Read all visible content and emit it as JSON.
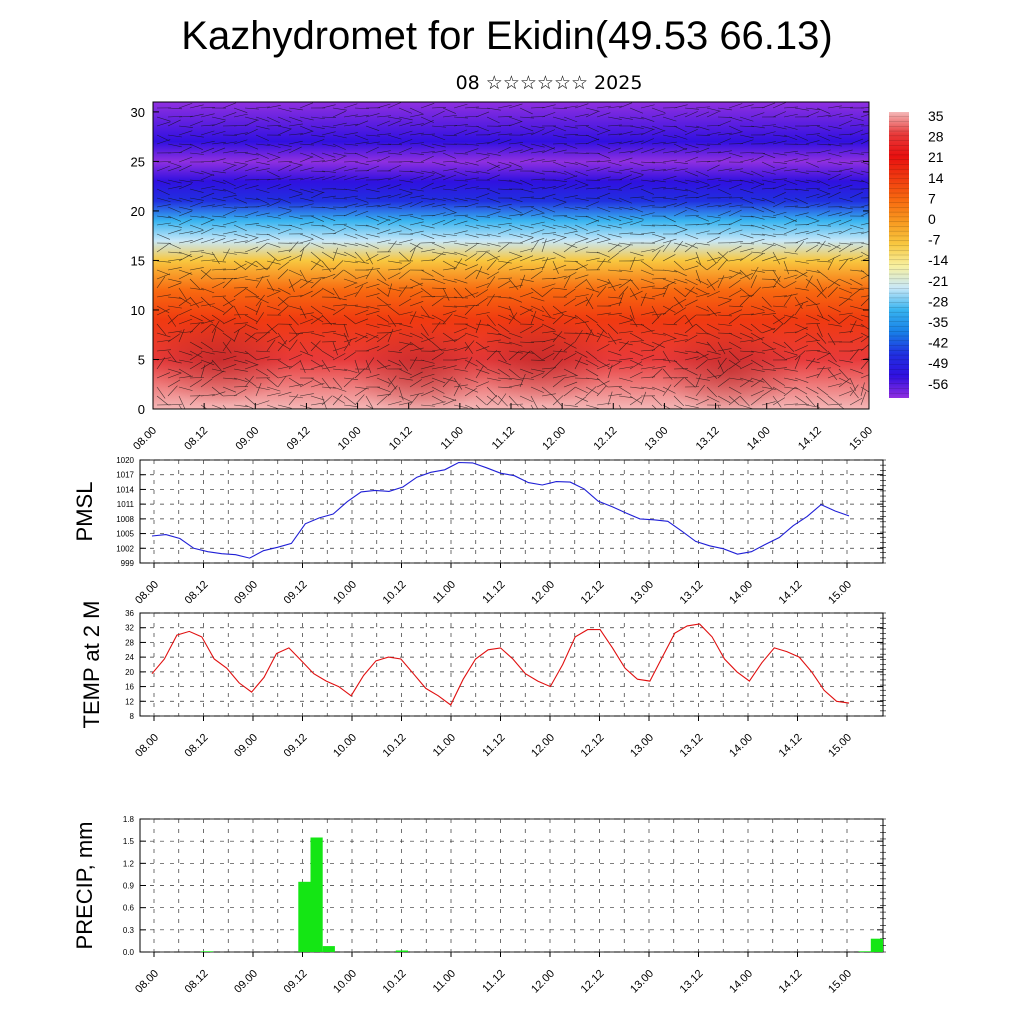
{
  "title": "Kazhydromet for Ekidin(49.53 66.13)",
  "subtitle": "08 ☆☆☆☆☆☆ 2025",
  "time_labels": [
    "08.00",
    "08.12",
    "09.00",
    "09.12",
    "10.00",
    "10.12",
    "11.00",
    "11.12",
    "12.00",
    "12.12",
    "13.00",
    "13.12",
    "14.00",
    "14.12",
    "15.00"
  ],
  "colors": {
    "pmsl": "#1f1fd6",
    "temp": "#e01010",
    "precip": "#14e614",
    "grid": "#555555"
  },
  "chart_data": [
    {
      "type": "heatmap",
      "title": "",
      "xlabel": "",
      "ylabel": "",
      "ylim": [
        0,
        31
      ],
      "yticks": [
        0,
        5,
        10,
        15,
        20,
        25,
        30
      ],
      "colorbar": {
        "labels": [
          "35",
          "28",
          "21",
          "14",
          "7",
          "0",
          "-7",
          "-14",
          "-21",
          "-28",
          "-35",
          "-42",
          "-49",
          "-56"
        ],
        "colors": [
          "#f4b8b8",
          "#e83a3a",
          "#e81010",
          "#f03a10",
          "#f86a10",
          "#f89a20",
          "#f8c840",
          "#f8f0a0",
          "#c8e8f8",
          "#38b4f0",
          "#1880e8",
          "#2030e0",
          "#3010e0",
          "#9030e0"
        ]
      },
      "profile": [
        {
          "z": 0,
          "t": 30
        },
        {
          "z": 5,
          "t": 24
        },
        {
          "z": 9,
          "t": 14
        },
        {
          "z": 12,
          "t": 5
        },
        {
          "z": 15,
          "t": -10
        },
        {
          "z": 17,
          "t": -22
        },
        {
          "z": 19,
          "t": -34
        },
        {
          "z": 21,
          "t": -46
        },
        {
          "z": 23,
          "t": -54
        },
        {
          "z": 25,
          "t": -56
        },
        {
          "z": 27,
          "t": -52
        },
        {
          "z": 31,
          "t": -58
        }
      ],
      "grid": "off",
      "overlay": "wind barbs"
    },
    {
      "type": "line",
      "ylabel": "PMSL",
      "ylim": [
        999,
        1020
      ],
      "yticks": [
        999,
        1002,
        1005,
        1008,
        1011,
        1014,
        1017,
        1020
      ],
      "series": [
        {
          "values": [
            1004.5,
            1004.8,
            1004,
            1002,
            1001.3,
            1000.9,
            1000.7,
            1000,
            1001.5,
            1002.2,
            1003,
            1007,
            1008.2,
            1009,
            1011.5,
            1013.5,
            1013.8,
            1013.6,
            1014.5,
            1016.5,
            1017.5,
            1018,
            1019.5,
            1019.4,
            1018.4,
            1017.3,
            1016.8,
            1015.4,
            1014.9,
            1015.6,
            1015.5,
            1014.1,
            1011.6,
            1010.5,
            1009.2,
            1008,
            1007.8,
            1007.5,
            1005.5,
            1003.4,
            1002.5,
            1001.9,
            1000.8,
            1001.3,
            1002.8,
            1004.2,
            1006.6,
            1008.5,
            1010.9,
            1009.6,
            1008.6
          ]
        }
      ],
      "grid": "on"
    },
    {
      "type": "line",
      "ylabel": "TEMP at 2 M",
      "ylim": [
        8,
        36
      ],
      "yticks": [
        8,
        12,
        16,
        20,
        24,
        28,
        32,
        36
      ],
      "series": [
        {
          "values": [
            19.5,
            23.5,
            30,
            31,
            29.5,
            23.5,
            21,
            17,
            14.5,
            18.5,
            25,
            26.5,
            23,
            19.5,
            17.5,
            16,
            13.5,
            19,
            23,
            24,
            23.5,
            19.5,
            15.5,
            13.5,
            11,
            18,
            23.5,
            26,
            26.5,
            23.5,
            19.5,
            17.5,
            16,
            22,
            29.5,
            31.5,
            31.5,
            26.5,
            21,
            18,
            17.5,
            24,
            30.5,
            32.5,
            33,
            29.5,
            23.5,
            20,
            17.5,
            22.5,
            26.5,
            25.5,
            24,
            20,
            15,
            12,
            11.5
          ]
        }
      ],
      "grid": "on"
    },
    {
      "type": "bar",
      "ylabel": "PRECIP, mm",
      "ylim": [
        0,
        1.8
      ],
      "yticks": [
        "0.0",
        "0.3",
        "0.6",
        "0.9",
        "1.2",
        "1.5",
        "1.8"
      ],
      "values": [
        0,
        0,
        0,
        0,
        0,
        0.01,
        0,
        0,
        0,
        0,
        0,
        0,
        0,
        0.95,
        1.55,
        0.08,
        0,
        0,
        0,
        0,
        0,
        0.02,
        0,
        0,
        0,
        0,
        0,
        0,
        0,
        0,
        0,
        0,
        0,
        0,
        0,
        0,
        0,
        0,
        0,
        0,
        0,
        0,
        0,
        0,
        0,
        0,
        0,
        0,
        0,
        0,
        0,
        0,
        0,
        0,
        0,
        0,
        0,
        0,
        0,
        0.01,
        0.18
      ],
      "grid": "on"
    }
  ]
}
